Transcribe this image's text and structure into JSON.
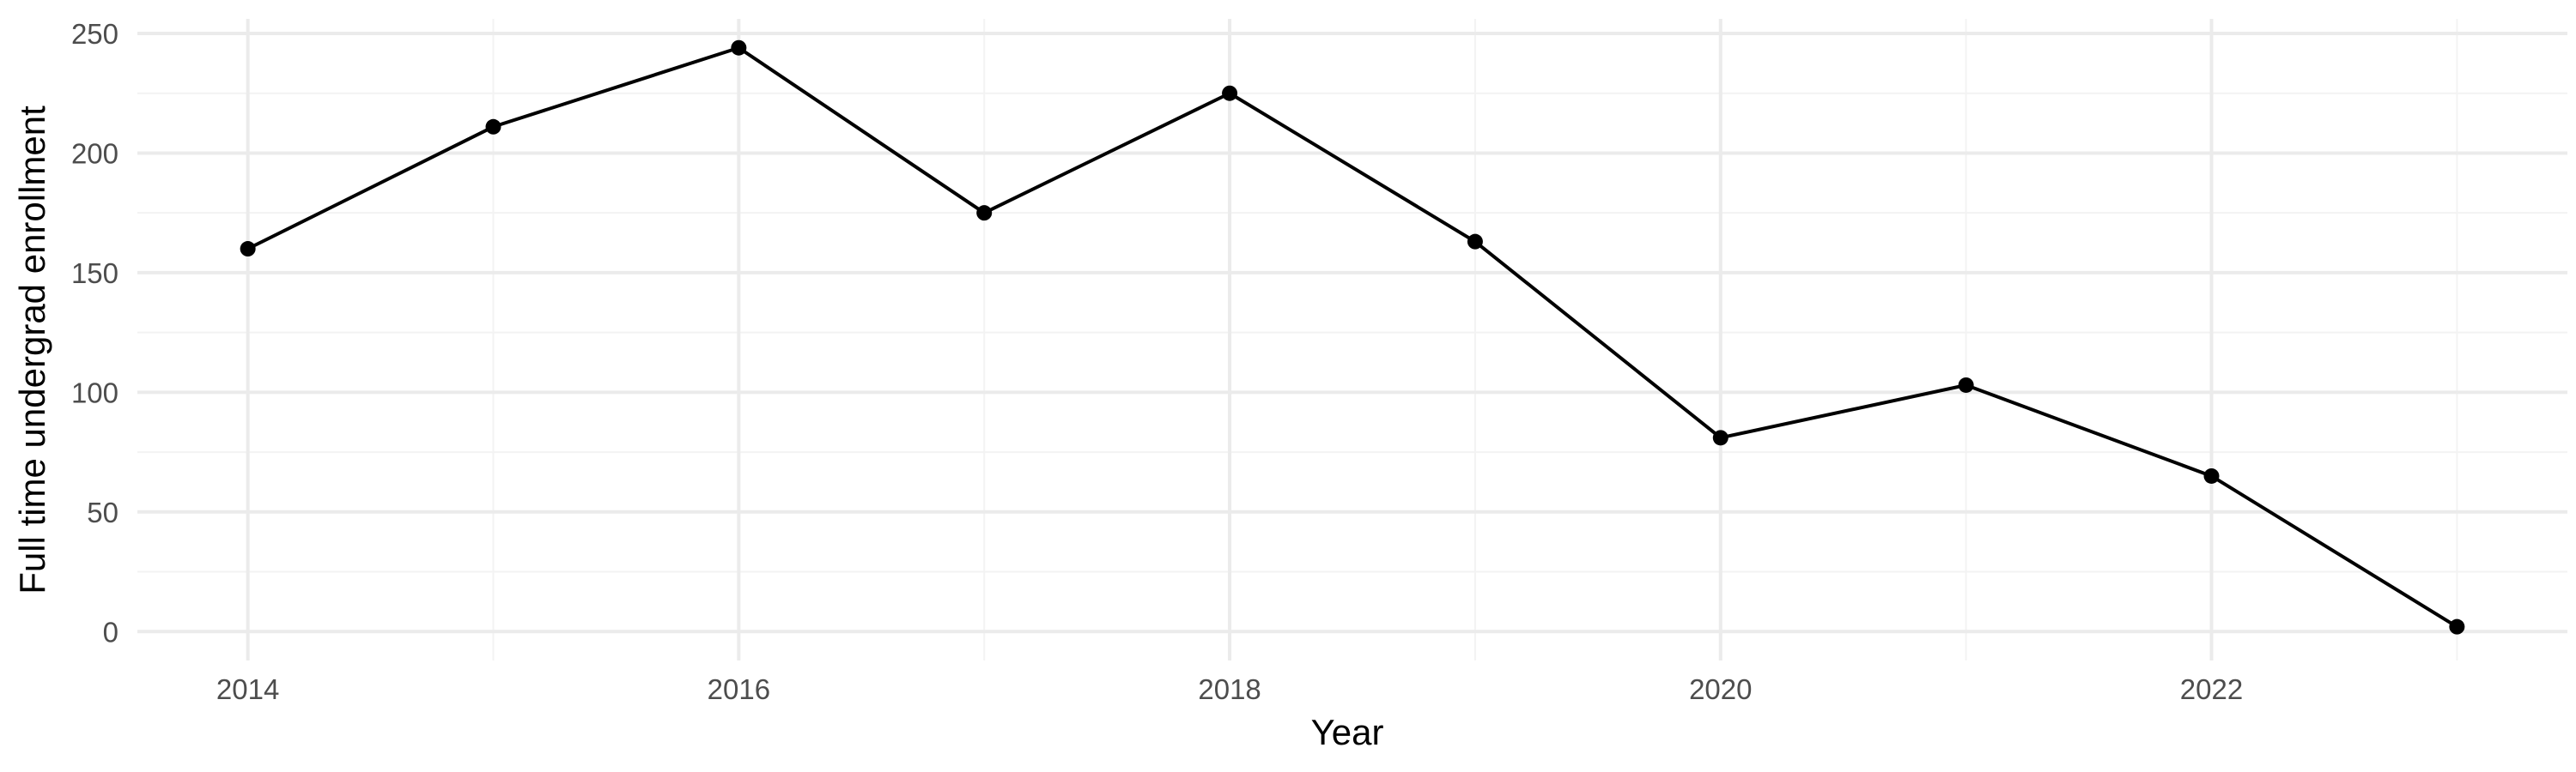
{
  "chart_data": {
    "type": "line",
    "title": "",
    "xlabel": "Year",
    "ylabel": "Full time undergrad enrollment",
    "x": [
      2014,
      2015,
      2016,
      2017,
      2018,
      2019,
      2020,
      2021,
      2022,
      2023
    ],
    "series": [
      {
        "values": [
          160,
          211,
          244,
          175,
          225,
          163,
          81,
          103,
          65,
          2
        ]
      }
    ],
    "xlim": [
      2013.55,
      2023.45
    ],
    "ylim": [
      -12.1,
      256.1
    ],
    "x_ticks": [
      2014,
      2016,
      2018,
      2020,
      2022
    ],
    "x_tick_labels": [
      "2014",
      "2016",
      "2018",
      "2020",
      "2022"
    ],
    "y_ticks": [
      0,
      50,
      100,
      150,
      200,
      250
    ],
    "y_tick_labels": [
      "0",
      "50",
      "100",
      "150",
      "200",
      "250"
    ],
    "grid": true,
    "legend": "none",
    "colors": {
      "line": "#000000",
      "point": "#000000",
      "grid_major": "#ebebeb",
      "grid_minor": "#f3f3f3",
      "tick_text": "#4d4d4d",
      "axis_title": "#000000",
      "background": "#ffffff"
    }
  }
}
